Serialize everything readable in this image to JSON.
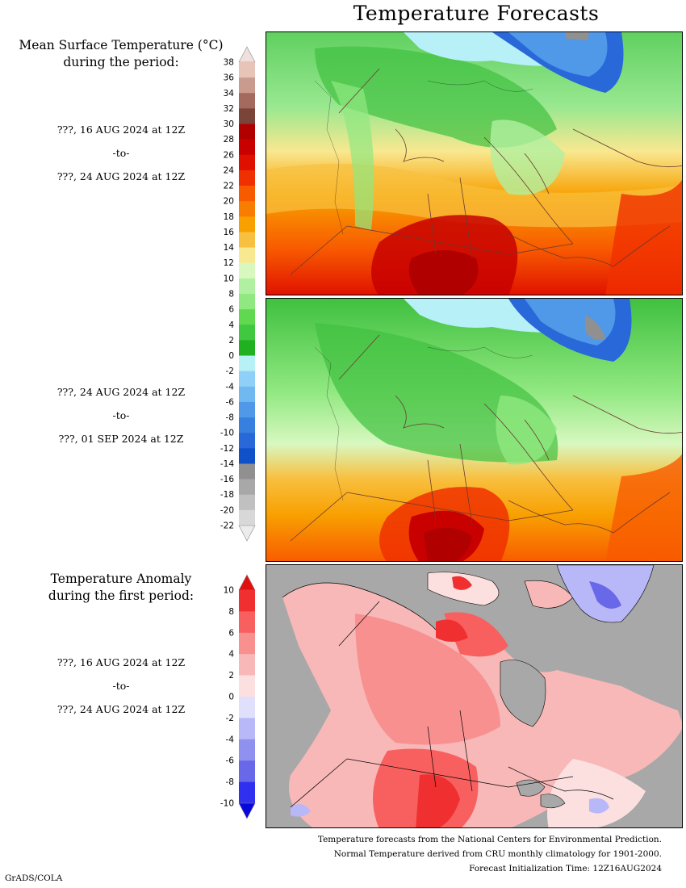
{
  "title": "Temperature Forecasts",
  "mean_panel": {
    "heading_line1": "Mean Surface Temperature (°C)",
    "heading_line2": "during the period:",
    "period1": {
      "start": "???, 16 AUG 2024 at 12Z",
      "sep": "-to-",
      "end": "???, 24 AUG 2024 at 12Z"
    },
    "period2": {
      "start": "???, 24 AUG 2024 at 12Z",
      "sep": "-to-",
      "end": "???, 01 SEP 2024 at 12Z"
    }
  },
  "anomaly_panel": {
    "heading_line1": "Temperature Anomaly",
    "heading_line2": "during the first period:",
    "period": {
      "start": "???, 16 AUG 2024 at 12Z",
      "sep": "-to-",
      "end": "???, 24 AUG 2024 at 12Z"
    }
  },
  "temp_colorbar": {
    "labels": [
      "38",
      "36",
      "34",
      "32",
      "30",
      "28",
      "26",
      "24",
      "22",
      "20",
      "18",
      "16",
      "14",
      "12",
      "10",
      "8",
      "6",
      "4",
      "2",
      "0",
      "-2",
      "-4",
      "-6",
      "-8",
      "-10",
      "-12",
      "-14",
      "-16",
      "-18",
      "-20",
      "-22"
    ],
    "colors": [
      "#e8c3b8",
      "#c99a8e",
      "#a36a5d",
      "#7a4438",
      "#b00000",
      "#c80000",
      "#e01000",
      "#f03000",
      "#f85a00",
      "#f87d00",
      "#f8a000",
      "#f8c040",
      "#f8e890",
      "#d8f8c0",
      "#b0f0a0",
      "#90e880",
      "#60d850",
      "#40c840",
      "#20b020",
      "#b8f0f8",
      "#90d0f8",
      "#70b8f0",
      "#5098e8",
      "#3880e0",
      "#2868d8",
      "#1050c8",
      "#909090",
      "#a8a8a8",
      "#c0c0c0",
      "#d8d8d8"
    ],
    "top_cap_color": "#f0e0dc",
    "bottom_cap_color": "#ececec"
  },
  "anom_colorbar": {
    "labels": [
      "10",
      "8",
      "6",
      "4",
      "2",
      "0",
      "-2",
      "-4",
      "-6",
      "-8",
      "-10"
    ],
    "colors": [
      "#f03030",
      "#f86060",
      "#f89090",
      "#f8b8b8",
      "#fce0e0",
      "#e0e0fc",
      "#b8b8f8",
      "#9090f0",
      "#6868e8",
      "#3030f0"
    ],
    "top_cap_color": "#e01010",
    "bottom_cap_color": "#0808d8"
  },
  "footer": {
    "line1": "Temperature forecasts from the National Centers for Environmental Prediction.",
    "line2": "Normal Temperature derived from CRU monthly climatology for 1901-2000.",
    "line3": "Forecast Initialization Time: 12Z16AUG2024"
  },
  "credit": "GrADS/COLA"
}
